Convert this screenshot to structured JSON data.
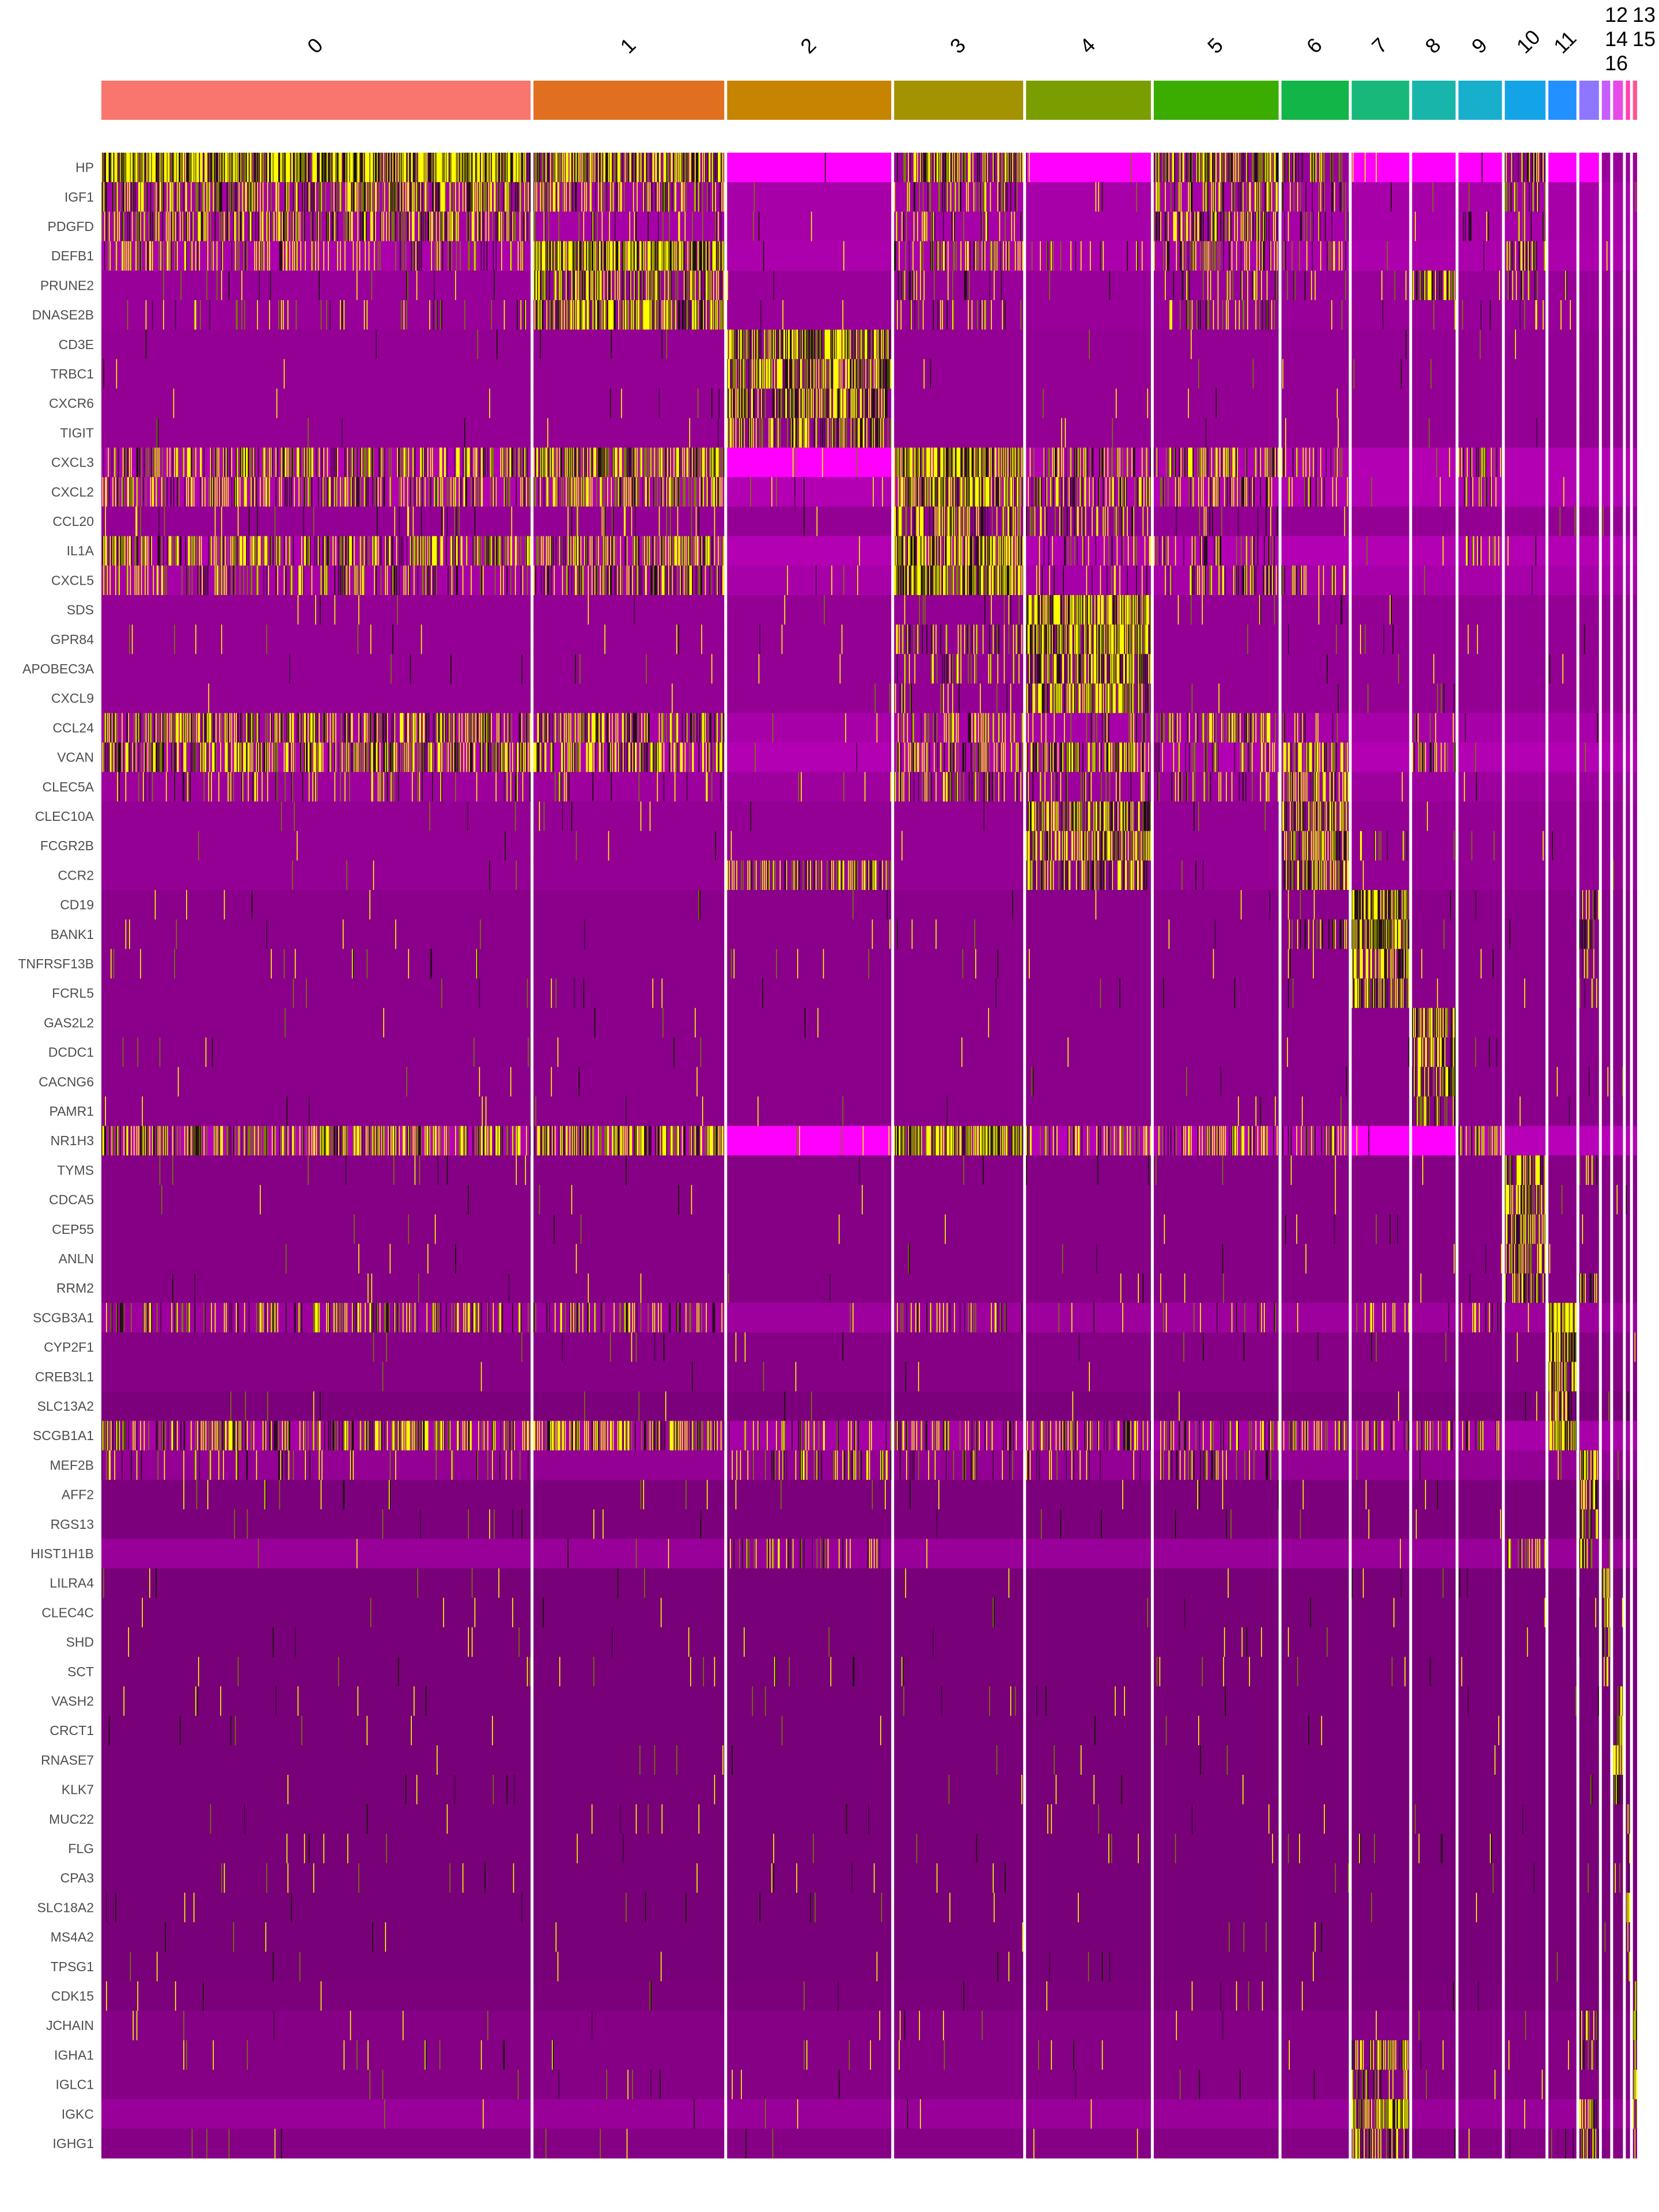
{
  "chart_data": {
    "type": "heatmap",
    "title": "",
    "colorscale": {
      "low": "#FF00FF",
      "mid": "#000000",
      "high": "#FFFF00",
      "range": [
        -2.5,
        2.5
      ]
    },
    "legend": "none",
    "clusters": [
      {
        "label": "0",
        "color": "#F8766D",
        "relative_size": 306
      },
      {
        "label": "1",
        "color": "#E07020",
        "relative_size": 136
      },
      {
        "label": "2",
        "color": "#C68400",
        "relative_size": 117
      },
      {
        "label": "3",
        "color": "#A39300",
        "relative_size": 92
      },
      {
        "label": "4",
        "color": "#7A9E00",
        "relative_size": 89
      },
      {
        "label": "5",
        "color": "#3AAD00",
        "relative_size": 89
      },
      {
        "label": "6",
        "color": "#12B547",
        "relative_size": 48
      },
      {
        "label": "7",
        "color": "#17B87A",
        "relative_size": 41
      },
      {
        "label": "8",
        "color": "#18B5AA",
        "relative_size": 31
      },
      {
        "label": "9",
        "color": "#18AFCC",
        "relative_size": 31
      },
      {
        "label": "10",
        "color": "#13A4E8",
        "relative_size": 29
      },
      {
        "label": "11",
        "color": "#2290FF",
        "relative_size": 20
      },
      {
        "label": "12",
        "color": "#8F76FF",
        "relative_size": 14
      },
      {
        "label": "13",
        "color": "#C55DFF",
        "relative_size": 6
      },
      {
        "label": "14",
        "color": "#E84AE8",
        "relative_size": 7
      },
      {
        "label": "15",
        "color": "#FF40B0",
        "relative_size": 3
      },
      {
        "label": "16",
        "color": "#FF5590",
        "relative_size": 3
      }
    ],
    "genes": [
      {
        "gene": "HP",
        "base": -1.5,
        "low": [
          2,
          4,
          7,
          8,
          9,
          11,
          12
        ],
        "hi": {
          "0": 0.95,
          "1": 0.7,
          "3": 0.5,
          "5": 0.6,
          "6": 0.4,
          "10": 0.5
        }
      },
      {
        "gene": "IGF1",
        "base": -1.65,
        "hi": {
          "0": 0.55,
          "1": 0.4,
          "3": 0.3,
          "5": 0.4,
          "6": 0.2,
          "10": 0.3
        }
      },
      {
        "gene": "PDGFD",
        "base": -1.65,
        "hi": {
          "0": 0.5,
          "1": 0.15,
          "3": 0.25,
          "5": 0.4,
          "6": 0.15,
          "9": 0.1,
          "10": 0.2
        }
      },
      {
        "gene": "DEFB1",
        "base": -1.7,
        "hi": {
          "0": 0.25,
          "1": 0.9,
          "3": 0.35,
          "4": 0.15,
          "5": 0.35,
          "6": 0.2,
          "10": 0.4
        }
      },
      {
        "gene": "PRUNE2",
        "base": -1.5,
        "hi": {
          "0": 0.03,
          "1": 0.6,
          "3": 0.15,
          "5": 0.15,
          "6": 0.1,
          "8": 0.6,
          "10": 0.2
        }
      },
      {
        "gene": "DNASE2B",
        "base": -1.5,
        "hi": {
          "0": 0.1,
          "1": 0.7,
          "3": 0.15,
          "5": 0.25,
          "6": 0.1,
          "10": 0.1
        }
      },
      {
        "gene": "CD3E",
        "base": -1.45,
        "hi": {
          "2": 0.8
        }
      },
      {
        "gene": "TRBC1",
        "base": -1.45,
        "hi": {
          "2": 0.7,
          "7": 0.05
        }
      },
      {
        "gene": "CXCR6",
        "base": -1.45,
        "hi": {
          "2": 0.65
        }
      },
      {
        "gene": "TIGIT",
        "base": -1.45,
        "hi": {
          "2": 0.55
        }
      },
      {
        "gene": "CXCL3",
        "base": -1.75,
        "low": [
          2
        ],
        "hi": {
          "0": 0.5,
          "1": 0.7,
          "3": 0.9,
          "4": 0.4,
          "5": 0.4,
          "6": 0.2,
          "9": 0.4
        }
      },
      {
        "gene": "CXCL2",
        "base": -1.75,
        "hi": {
          "0": 0.4,
          "1": 0.5,
          "3": 0.8,
          "4": 0.5,
          "5": 0.4,
          "6": 0.2,
          "9": 0.3
        }
      },
      {
        "gene": "CCL20",
        "base": -1.45,
        "hi": {
          "0": 0.05,
          "1": 0.1,
          "3": 0.5,
          "4": 0.3,
          "5": 0.1
        }
      },
      {
        "gene": "IL1A",
        "base": -1.75,
        "hi": {
          "0": 0.5,
          "1": 0.5,
          "3": 0.8,
          "4": 0.2,
          "5": 0.3,
          "9": 0.3
        }
      },
      {
        "gene": "CXCL5",
        "base": -1.65,
        "hi": {
          "0": 0.3,
          "1": 0.5,
          "3": 0.9,
          "4": 0.1,
          "5": 0.3,
          "6": 0.3
        }
      },
      {
        "gene": "SDS",
        "base": -1.45,
        "hi": {
          "3": 0.1,
          "4": 0.8
        }
      },
      {
        "gene": "GPR84",
        "base": -1.45,
        "hi": {
          "3": 0.3,
          "4": 0.8
        }
      },
      {
        "gene": "APOBEC3A",
        "base": -1.45,
        "hi": {
          "3": 0.2,
          "4": 0.7
        }
      },
      {
        "gene": "CXCL9",
        "base": -1.45,
        "hi": {
          "3": 0.1,
          "4": 0.7,
          "8": 0.1
        }
      },
      {
        "gene": "CCL24",
        "base": -1.65,
        "hi": {
          "0": 0.5,
          "1": 0.5,
          "3": 0.3,
          "4": 0.2,
          "5": 0.4,
          "6": 0.2,
          "8": 0.2
        }
      },
      {
        "gene": "VCAN",
        "base": -1.75,
        "hi": {
          "0": 0.6,
          "1": 0.5,
          "3": 0.4,
          "4": 0.6,
          "5": 0.3,
          "6": 0.6,
          "8": 0.3
        }
      },
      {
        "gene": "CLEC5A",
        "base": -1.55,
        "hi": {
          "0": 0.15,
          "1": 0.1,
          "3": 0.3,
          "4": 0.2,
          "5": 0.2,
          "6": 0.4
        }
      },
      {
        "gene": "CLEC10A",
        "base": -1.45,
        "hi": {
          "4": 0.7,
          "6": 0.6
        }
      },
      {
        "gene": "FCGR2B",
        "base": -1.45,
        "hi": {
          "4": 0.6,
          "6": 0.6,
          "7": 0.2
        }
      },
      {
        "gene": "CCR2",
        "base": -1.45,
        "hi": {
          "2": 0.4,
          "4": 0.5,
          "6": 0.6
        }
      },
      {
        "gene": "CD19",
        "base": -1.35,
        "hi": {
          "7": 0.8,
          "12": 0.4
        }
      },
      {
        "gene": "BANK1",
        "base": -1.35,
        "hi": {
          "6": 0.2,
          "7": 0.8,
          "12": 0.4
        }
      },
      {
        "gene": "TNFRSF13B",
        "base": -1.35,
        "hi": {
          "7": 0.7,
          "12": 0.2
        }
      },
      {
        "gene": "FCRL5",
        "base": -1.35,
        "hi": {
          "7": 0.7,
          "12": 0.2
        }
      },
      {
        "gene": "GAS2L2",
        "base": -1.35,
        "hi": {
          "8": 0.8
        }
      },
      {
        "gene": "DCDC1",
        "base": -1.35,
        "hi": {
          "8": 0.7
        }
      },
      {
        "gene": "CACNG6",
        "base": -1.35,
        "hi": {
          "8": 0.6
        }
      },
      {
        "gene": "PAMR1",
        "base": -1.35,
        "hi": {
          "8": 0.5
        }
      },
      {
        "gene": "NR1H3",
        "base": -1.8,
        "low": [
          2,
          7,
          8
        ],
        "hi": {
          "0": 0.5,
          "1": 0.7,
          "3": 0.9,
          "4": 0.3,
          "5": 0.4,
          "6": 0.3,
          "9": 0.4
        }
      },
      {
        "gene": "TYMS",
        "base": -1.3,
        "hi": {
          "10": 0.7,
          "12": 0.3
        }
      },
      {
        "gene": "CDCA5",
        "base": -1.3,
        "hi": {
          "10": 0.7
        }
      },
      {
        "gene": "CEP55",
        "base": -1.3,
        "hi": {
          "10": 0.6
        }
      },
      {
        "gene": "ANLN",
        "base": -1.3,
        "hi": {
          "10": 0.6
        }
      },
      {
        "gene": "RRM2",
        "base": -1.3,
        "hi": {
          "10": 0.5,
          "12": 0.3
        }
      },
      {
        "gene": "SCGB3A1",
        "base": -1.55,
        "hi": {
          "0": 0.3,
          "1": 0.3,
          "3": 0.2,
          "5": 0.1,
          "7": 0.2,
          "9": 0.2,
          "11": 0.9
        }
      },
      {
        "gene": "CYP2F1",
        "base": -1.3,
        "hi": {
          "11": 0.8
        }
      },
      {
        "gene": "CREB3L1",
        "base": -1.3,
        "hi": {
          "11": 0.8
        }
      },
      {
        "gene": "SLC13A2",
        "base": -1.22,
        "hi": {
          "11": 0.6
        }
      },
      {
        "gene": "SCGB1A1",
        "base": -1.65,
        "hi": {
          "0": 0.4,
          "1": 0.5,
          "2": 0.2,
          "3": 0.4,
          "4": 0.4,
          "5": 0.3,
          "6": 0.3,
          "7": 0.3,
          "8": 0.4,
          "9": 0.3,
          "11": 0.9
        }
      },
      {
        "gene": "MEF2B",
        "base": -1.45,
        "hi": {
          "0": 0.1,
          "2": 0.2,
          "3": 0.2,
          "4": 0.1,
          "5": 0.2,
          "12": 0.7
        }
      },
      {
        "gene": "AFF2",
        "base": -1.22,
        "hi": {
          "12": 0.6
        }
      },
      {
        "gene": "RGS13",
        "base": -1.22,
        "hi": {
          "12": 0.6
        }
      },
      {
        "gene": "HIST1H1B",
        "base": -1.5,
        "hi": {
          "2": 0.2,
          "10": 0.5,
          "12": 0.4
        }
      },
      {
        "gene": "LILRA4",
        "base": -1.18,
        "hi": {
          "13": 0.8
        }
      },
      {
        "gene": "CLEC4C",
        "base": -1.18,
        "hi": {
          "13": 0.7
        }
      },
      {
        "gene": "SHD",
        "base": -1.18,
        "hi": {
          "13": 0.6
        }
      },
      {
        "gene": "SCT",
        "base": -1.18,
        "hi": {
          "13": 0.5
        }
      },
      {
        "gene": "VASH2",
        "base": -1.18,
        "hi": {
          "14": 0.5
        }
      },
      {
        "gene": "CRCT1",
        "base": -1.18,
        "hi": {
          "14": 0.6
        }
      },
      {
        "gene": "RNASE7",
        "base": -1.18,
        "hi": {
          "14": 0.6
        }
      },
      {
        "gene": "KLK7",
        "base": -1.18,
        "hi": {
          "14": 0.5
        }
      },
      {
        "gene": "MUC22",
        "base": -1.18,
        "hi": {
          "15": 0.6
        }
      },
      {
        "gene": "FLG",
        "base": -1.18,
        "hi": {
          "15": 0.5
        }
      },
      {
        "gene": "CPA3",
        "base": -1.18,
        "hi": {
          "15": 0.7
        }
      },
      {
        "gene": "SLC18A2",
        "base": -1.18,
        "hi": {
          "15": 0.6
        }
      },
      {
        "gene": "MS4A2",
        "base": -1.18,
        "hi": {
          "15": 0.6
        }
      },
      {
        "gene": "TPSG1",
        "base": -1.18,
        "hi": {
          "15": 0.5
        }
      },
      {
        "gene": "CDK15",
        "base": -1.22,
        "hi": {
          "16": 0.5
        }
      },
      {
        "gene": "JCHAIN",
        "base": -1.3,
        "hi": {
          "12": 0.5,
          "16": 0.7
        }
      },
      {
        "gene": "IGHA1",
        "base": -1.3,
        "hi": {
          "7": 0.5,
          "12": 0.3,
          "16": 0.6
        }
      },
      {
        "gene": "IGLC1",
        "base": -1.3,
        "hi": {
          "7": 0.3,
          "16": 0.6
        }
      },
      {
        "gene": "IGKC",
        "base": -1.5,
        "hi": {
          "7": 0.7,
          "12": 0.5,
          "16": 0.7
        }
      },
      {
        "gene": "IGHG1",
        "base": -1.3,
        "hi": {
          "7": 0.5,
          "12": 0.4,
          "16": 0.6
        }
      }
    ]
  }
}
